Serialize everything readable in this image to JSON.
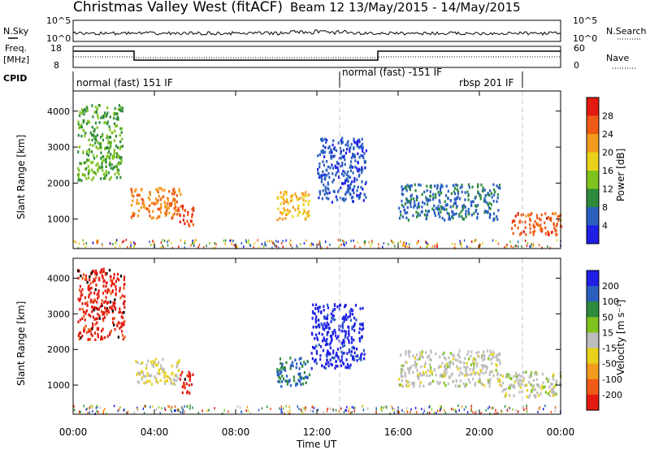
{
  "header": {
    "title_left": "Christmas Valley West (fitACF)",
    "title_right": "Beam 12 13/May/2015 - 14/May/2015"
  },
  "top_panels": {
    "nsky_label": "N.Sky",
    "nsky_ticks": [
      "10^5",
      "10^0"
    ],
    "nsearch_label": "N.Search",
    "freq_label": "Freq.",
    "freq_unit": "[MHz]",
    "freq_ticks": [
      "18",
      "8"
    ],
    "nave_ticks": [
      "60",
      "0"
    ],
    "nave_label": "Nave",
    "cpid_label": "CPID",
    "cpid_segments": [
      "normal (fast) 151 IF",
      "normal (fast) -151 IF",
      "rbsp 201 IF"
    ]
  },
  "colors": {
    "power_scale": [
      "#1f1fe6",
      "#2a5fc0",
      "#2e8a3c",
      "#7fc31e",
      "#e8d21c",
      "#f39b1c",
      "#ef5a16",
      "#e31a10"
    ],
    "velocity_scale": [
      "#1f1fe6",
      "#2a5fc0",
      "#2e8a3c",
      "#7fc31e",
      "#bdbdbd",
      "#e8d21c",
      "#f39b1c",
      "#ef5a16",
      "#e31a10"
    ],
    "ground_scatter": "#b9b9b9"
  },
  "chart_data": [
    {
      "type": "heatmap",
      "panel": "power",
      "ylabel": "Slant Range [km]",
      "yticks": [
        "1000",
        "2000",
        "3000",
        "4000"
      ],
      "ylim": [
        180,
        4560
      ],
      "colorbar_label": "Power [dB]",
      "colorbar_ticks": [
        "4",
        "8",
        "12",
        "16",
        "20",
        "24",
        "28"
      ],
      "colorbar_range": [
        0,
        32
      ],
      "regions": [
        {
          "t0": 0.2,
          "t1": 2.4,
          "r0": 2100,
          "r1": 4200,
          "value": 12
        },
        {
          "t0": 2.8,
          "t1": 5.3,
          "r0": 1050,
          "r1": 1900,
          "value": 24
        },
        {
          "t0": 5.2,
          "t1": 5.9,
          "r0": 800,
          "r1": 1400,
          "value": 28
        },
        {
          "t0": 10.0,
          "t1": 11.6,
          "r0": 1000,
          "r1": 1800,
          "value": 20
        },
        {
          "t0": 12.0,
          "t1": 14.4,
          "r0": 1500,
          "r1": 3300,
          "value": 5
        },
        {
          "t0": 16.0,
          "t1": 21.0,
          "r0": 1000,
          "r1": 2000,
          "value": 7
        },
        {
          "t0": 21.5,
          "t1": 24.0,
          "r0": 600,
          "r1": 1200,
          "value": 26
        }
      ]
    },
    {
      "type": "heatmap",
      "panel": "velocity",
      "ylabel": "Slant Range [km]",
      "yticks": [
        "1000",
        "2000",
        "3000",
        "4000"
      ],
      "ylim": [
        180,
        4560
      ],
      "xlabel": "Time UT",
      "xticks": [
        "00:00",
        "04:00",
        "08:00",
        "12:00",
        "16:00",
        "20:00",
        "00:00"
      ],
      "xlim": [
        0,
        24
      ],
      "colorbar_label": "Velocity [m s⁻¹]",
      "colorbar_ticks": [
        "200",
        "100",
        "50",
        "15",
        "-15",
        "-50",
        "-100",
        "-200"
      ],
      "colorbar_range": [
        -250,
        250
      ],
      "regions": [
        {
          "t0": 0.2,
          "t1": 2.5,
          "r0": 2300,
          "r1": 4300,
          "value": -220
        },
        {
          "t0": 3.0,
          "t1": 5.2,
          "r0": 1050,
          "r1": 1800,
          "value": -30
        },
        {
          "t0": 5.2,
          "t1": 5.9,
          "r0": 800,
          "r1": 1400,
          "value": -220
        },
        {
          "t0": 10.0,
          "t1": 11.6,
          "r0": 1000,
          "r1": 1800,
          "value": 150
        },
        {
          "t0": 11.7,
          "t1": 14.3,
          "r0": 1500,
          "r1": 3300,
          "value": 220
        },
        {
          "t0": 16.0,
          "t1": 21.0,
          "r0": 1000,
          "r1": 2000,
          "value": 0
        },
        {
          "t0": 21.0,
          "t1": 24.0,
          "r0": 700,
          "r1": 1400,
          "value": 0
        }
      ]
    }
  ]
}
